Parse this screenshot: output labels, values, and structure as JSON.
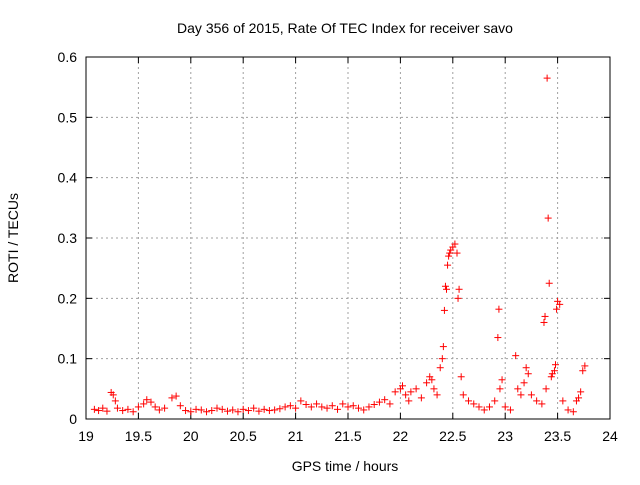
{
  "chart_data": {
    "type": "scatter",
    "title": "Day 356 of 2015, Rate Of TEC Index for receiver savo",
    "xlabel": "GPS time / hours",
    "ylabel": "ROTI / TECUs",
    "xlim": [
      19,
      24
    ],
    "ylim": [
      0,
      0.6
    ],
    "xticks": [
      19,
      19.5,
      20,
      20.5,
      21,
      21.5,
      22,
      22.5,
      23,
      23.5,
      24
    ],
    "xtick_labels": [
      "19",
      "19.5",
      "20",
      "20.5",
      "21",
      "21.5",
      "22",
      "22.5",
      "23",
      "23.5",
      "24"
    ],
    "yticks": [
      0,
      0.1,
      0.2,
      0.3,
      0.4,
      0.5,
      0.6
    ],
    "ytick_labels": [
      "0",
      "0.1",
      "0.2",
      "0.3",
      "0.4",
      "0.5",
      "0.6"
    ],
    "grid": true,
    "marker": "+",
    "color": "#ff0000",
    "points": [
      [
        19.08,
        0.016
      ],
      [
        19.12,
        0.014
      ],
      [
        19.16,
        0.018
      ],
      [
        19.2,
        0.013
      ],
      [
        19.24,
        0.044
      ],
      [
        19.26,
        0.04
      ],
      [
        19.28,
        0.03
      ],
      [
        19.3,
        0.018
      ],
      [
        19.35,
        0.014
      ],
      [
        19.4,
        0.016
      ],
      [
        19.45,
        0.012
      ],
      [
        19.5,
        0.02
      ],
      [
        19.55,
        0.025
      ],
      [
        19.58,
        0.032
      ],
      [
        19.62,
        0.028
      ],
      [
        19.66,
        0.02
      ],
      [
        19.7,
        0.015
      ],
      [
        19.75,
        0.018
      ],
      [
        19.82,
        0.035
      ],
      [
        19.86,
        0.038
      ],
      [
        19.9,
        0.022
      ],
      [
        19.95,
        0.014
      ],
      [
        20.0,
        0.012
      ],
      [
        20.05,
        0.016
      ],
      [
        20.1,
        0.015
      ],
      [
        20.15,
        0.012
      ],
      [
        20.2,
        0.014
      ],
      [
        20.25,
        0.018
      ],
      [
        20.3,
        0.016
      ],
      [
        20.35,
        0.013
      ],
      [
        20.4,
        0.015
      ],
      [
        20.45,
        0.012
      ],
      [
        20.5,
        0.016
      ],
      [
        20.55,
        0.014
      ],
      [
        20.6,
        0.018
      ],
      [
        20.65,
        0.013
      ],
      [
        20.7,
        0.016
      ],
      [
        20.75,
        0.014
      ],
      [
        20.8,
        0.015
      ],
      [
        20.85,
        0.017
      ],
      [
        20.9,
        0.02
      ],
      [
        20.95,
        0.022
      ],
      [
        21.0,
        0.018
      ],
      [
        21.05,
        0.03
      ],
      [
        21.1,
        0.024
      ],
      [
        21.15,
        0.02
      ],
      [
        21.2,
        0.025
      ],
      [
        21.25,
        0.02
      ],
      [
        21.3,
        0.018
      ],
      [
        21.35,
        0.022
      ],
      [
        21.4,
        0.016
      ],
      [
        21.45,
        0.025
      ],
      [
        21.5,
        0.02
      ],
      [
        21.55,
        0.022
      ],
      [
        21.6,
        0.018
      ],
      [
        21.65,
        0.015
      ],
      [
        21.7,
        0.02
      ],
      [
        21.75,
        0.024
      ],
      [
        21.8,
        0.028
      ],
      [
        21.85,
        0.032
      ],
      [
        21.9,
        0.025
      ],
      [
        21.95,
        0.045
      ],
      [
        22.0,
        0.05
      ],
      [
        22.02,
        0.055
      ],
      [
        22.05,
        0.04
      ],
      [
        22.08,
        0.03
      ],
      [
        22.1,
        0.045
      ],
      [
        22.15,
        0.05
      ],
      [
        22.2,
        0.035
      ],
      [
        22.25,
        0.06
      ],
      [
        22.28,
        0.07
      ],
      [
        22.3,
        0.065
      ],
      [
        22.32,
        0.05
      ],
      [
        22.35,
        0.04
      ],
      [
        22.38,
        0.085
      ],
      [
        22.4,
        0.1
      ],
      [
        22.41,
        0.12
      ],
      [
        22.42,
        0.18
      ],
      [
        22.43,
        0.22
      ],
      [
        22.44,
        0.215
      ],
      [
        22.45,
        0.255
      ],
      [
        22.46,
        0.27
      ],
      [
        22.47,
        0.275
      ],
      [
        22.48,
        0.28
      ],
      [
        22.5,
        0.285
      ],
      [
        22.52,
        0.29
      ],
      [
        22.54,
        0.275
      ],
      [
        22.55,
        0.2
      ],
      [
        22.56,
        0.215
      ],
      [
        22.58,
        0.07
      ],
      [
        22.6,
        0.04
      ],
      [
        22.65,
        0.03
      ],
      [
        22.7,
        0.025
      ],
      [
        22.75,
        0.02
      ],
      [
        22.8,
        0.015
      ],
      [
        22.85,
        0.02
      ],
      [
        22.9,
        0.03
      ],
      [
        22.93,
        0.135
      ],
      [
        22.94,
        0.182
      ],
      [
        22.95,
        0.05
      ],
      [
        22.97,
        0.065
      ],
      [
        23.0,
        0.02
      ],
      [
        23.05,
        0.015
      ],
      [
        23.1,
        0.105
      ],
      [
        23.12,
        0.05
      ],
      [
        23.15,
        0.04
      ],
      [
        23.18,
        0.06
      ],
      [
        23.2,
        0.085
      ],
      [
        23.22,
        0.075
      ],
      [
        23.25,
        0.04
      ],
      [
        23.3,
        0.03
      ],
      [
        23.35,
        0.025
      ],
      [
        23.37,
        0.16
      ],
      [
        23.38,
        0.17
      ],
      [
        23.39,
        0.05
      ],
      [
        23.4,
        0.565
      ],
      [
        23.41,
        0.333
      ],
      [
        23.42,
        0.225
      ],
      [
        23.44,
        0.07
      ],
      [
        23.45,
        0.075
      ],
      [
        23.47,
        0.08
      ],
      [
        23.48,
        0.09
      ],
      [
        23.49,
        0.182
      ],
      [
        23.5,
        0.195
      ],
      [
        23.52,
        0.19
      ],
      [
        23.55,
        0.03
      ],
      [
        23.6,
        0.015
      ],
      [
        23.65,
        0.012
      ],
      [
        23.68,
        0.03
      ],
      [
        23.7,
        0.035
      ],
      [
        23.72,
        0.045
      ],
      [
        23.74,
        0.08
      ],
      [
        23.76,
        0.088
      ]
    ]
  }
}
